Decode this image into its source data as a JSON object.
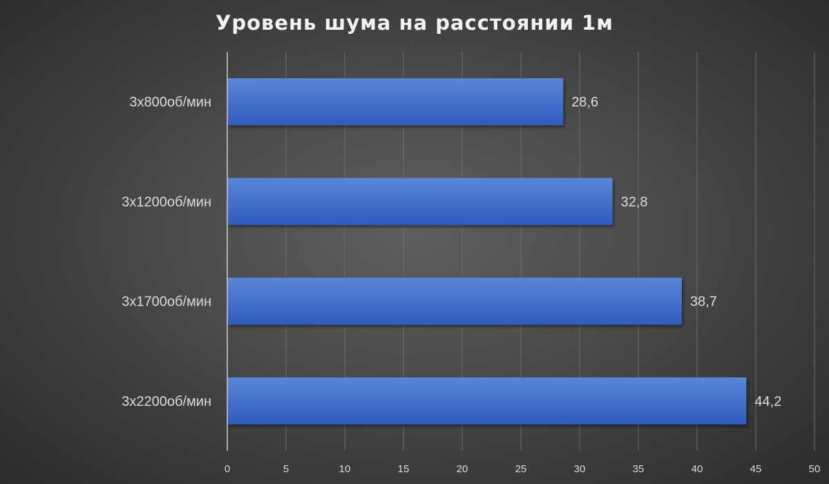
{
  "chart_data": {
    "type": "bar",
    "orientation": "horizontal",
    "title": "Уровень шума на расстоянии 1м",
    "categories": [
      "3x800об/мин",
      "3x1200об/мин",
      "3x1700об/мин",
      "3x2200об/мин"
    ],
    "values": [
      28.6,
      32.8,
      38.7,
      44.2
    ],
    "data_labels": [
      "28,6",
      "32,8",
      "38,7",
      "44,2"
    ],
    "xlim": [
      0,
      50
    ],
    "x_ticks": [
      0,
      5,
      10,
      15,
      20,
      25,
      30,
      35,
      40,
      45,
      50
    ],
    "xlabel": "",
    "ylabel": "",
    "grid": true,
    "legend": "none",
    "colors": {
      "bar_top": "#5b86d6",
      "bar_bottom": "#2f5bbf",
      "grid": "#6e6e6e",
      "axis": "#d0d0d0",
      "text": "#dcdcdc",
      "title": "#f2f2f2"
    }
  }
}
